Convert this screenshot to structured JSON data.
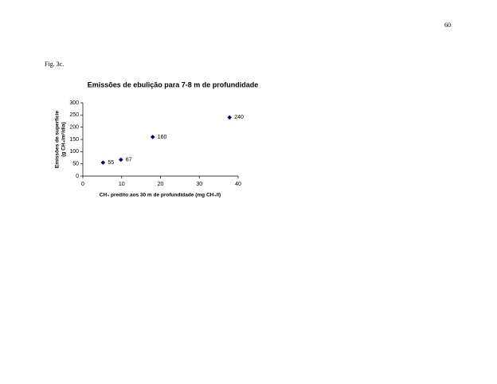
{
  "page_number": "60",
  "figure_label": "Fig. 3c.",
  "chart_data": {
    "type": "scatter",
    "title": "Emissões de ebulição para 7-8 m de profundidade",
    "x_label": "CH₄ predito aos 30 m de profundidade (mg CH₄/l)",
    "y_label": [
      "Emissões de superfície",
      "(g CH₄/m²/dia)"
    ],
    "series": [
      {
        "color": "#000080",
        "x": [
          5.2,
          9.8,
          18,
          37.8
        ],
        "values": [
          55,
          67,
          160,
          240
        ]
      }
    ],
    "xlim": [
      0,
      40
    ],
    "xticks": [
      0,
      10,
      20,
      30,
      40
    ],
    "ylim": [
      0,
      300
    ],
    "yticks": [
      0,
      50,
      100,
      150,
      200,
      250,
      300
    ],
    "grid": false
  }
}
